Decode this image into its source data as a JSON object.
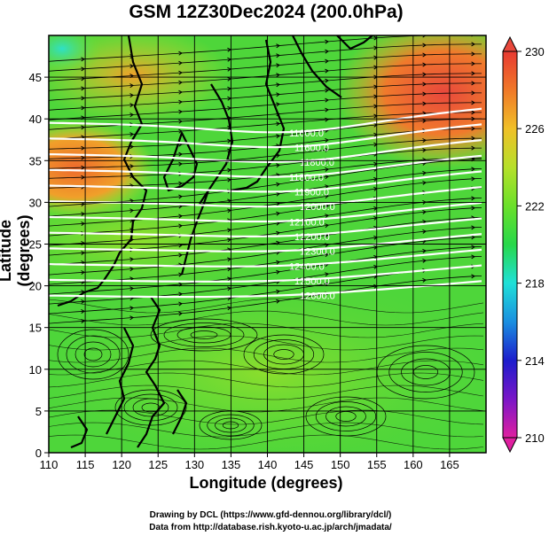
{
  "title": "GSM 12Z30Dec2024 (200.0hPa)",
  "xlabel": "Longitude (degrees)",
  "ylabel": "Latitude  (degrees)",
  "credit_line1": "Drawing by DCL (https://www.gfd-dennou.org/library/dcl/)",
  "credit_line2": "Data from http://database.rish.kyoto-u.ac.jp/arch/jmadata/",
  "map": {
    "lon_range": [
      110,
      170
    ],
    "lat_range": [
      0,
      50
    ],
    "lon_ticks": [
      "110",
      "115",
      "120",
      "125",
      "130",
      "135",
      "140",
      "145",
      "150",
      "155",
      "160",
      "165"
    ],
    "lat_ticks": [
      "0",
      "5",
      "10",
      "15",
      "20",
      "25",
      "30",
      "35",
      "40",
      "45"
    ]
  },
  "contours": {
    "color": "#ffffff",
    "labels": [
      "11600.0",
      "11600.0",
      "11800.0",
      "11800.0",
      "11900.0",
      "12000.0",
      "12100.0",
      "12200.0",
      "12300.0",
      "12400.0",
      "12500.0",
      "12600.0"
    ]
  },
  "colorbar": {
    "ticks": [
      "230",
      "226",
      "222",
      "218",
      "214",
      "210"
    ],
    "colors": [
      "#e01fa0",
      "#7a16c8",
      "#1c1ccc",
      "#1a8fe0",
      "#1fe0d8",
      "#27d84a",
      "#6be02a",
      "#b6e02a",
      "#f0c028",
      "#f07828",
      "#e83a32"
    ]
  }
}
